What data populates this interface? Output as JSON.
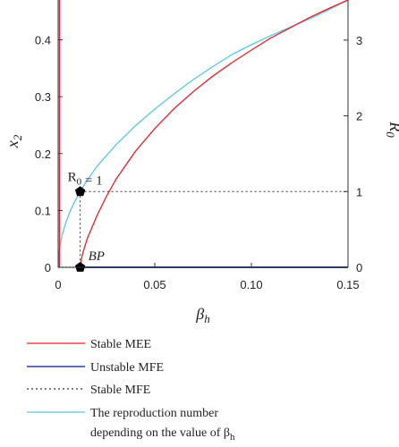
{
  "chart_data": {
    "type": "line",
    "xlabel": "β_h",
    "ylabel_left": "x_2",
    "ylabel_right": "R_0",
    "xlim": [
      0,
      0.15
    ],
    "ylim_left": [
      0,
      0.47
    ],
    "ylim_right": [
      0,
      3.53
    ],
    "x_ticks": [
      "0",
      "0.05",
      "0.10",
      "0.15"
    ],
    "y_left_ticks": [
      "0",
      "0.1",
      "0.2",
      "0.3",
      "0.4"
    ],
    "y_right_ticks": [
      "0",
      "1",
      "2",
      "3"
    ],
    "grid": false,
    "legend_position": "below",
    "colors": {
      "stable_mee": "#e8202a",
      "unstable_mfe": "#2e3f9e",
      "stable_mfe": "#333333",
      "r0": "#5bc6e0"
    },
    "series": [
      {
        "name": "Stable MEE",
        "axis": "left",
        "x": [
          0.0114,
          0.0125,
          0.015,
          0.02,
          0.025,
          0.03,
          0.04,
          0.05,
          0.06,
          0.07,
          0.08,
          0.09,
          0.1,
          0.11,
          0.12,
          0.13,
          0.14,
          0.15
        ],
        "y": [
          0.0,
          0.022,
          0.05,
          0.09,
          0.125,
          0.155,
          0.204,
          0.244,
          0.279,
          0.309,
          0.336,
          0.36,
          0.382,
          0.403,
          0.421,
          0.439,
          0.455,
          0.47
        ]
      },
      {
        "name": "Unstable MFE",
        "axis": "left",
        "x": [
          0.0114,
          0.15
        ],
        "y": [
          0,
          0
        ]
      },
      {
        "name": "Stable MFE",
        "axis": "left",
        "x": [
          0,
          0.0114
        ],
        "y": [
          0,
          0
        ]
      },
      {
        "name": "The reproduction number depending on the value of β_h",
        "axis": "right",
        "x": [
          0,
          0.0005,
          0.001,
          0.002,
          0.004,
          0.006,
          0.008,
          0.0114,
          0.015,
          0.02,
          0.03,
          0.04,
          0.05,
          0.06,
          0.07,
          0.08,
          0.09,
          0.1,
          0.11,
          0.12,
          0.13,
          0.14,
          0.15
        ],
        "y": [
          0,
          0.21,
          0.3,
          0.42,
          0.59,
          0.73,
          0.84,
          1.0,
          1.15,
          1.33,
          1.62,
          1.87,
          2.09,
          2.29,
          2.48,
          2.65,
          2.81,
          2.94,
          3.06,
          3.17,
          3.28,
          3.4,
          3.53
        ]
      }
    ],
    "left_spike_x": 0.0,
    "annotations": [
      {
        "text": "R_0 = 1",
        "x": 0.0114,
        "y_right": 1.0
      },
      {
        "text": "BP",
        "x": 0.0114,
        "y": 0.0
      }
    ],
    "legend": [
      {
        "key": "stable_mee",
        "label": "Stable MEE",
        "style": "solid"
      },
      {
        "key": "unstable_mfe",
        "label": "Unstable MFE",
        "style": "solid"
      },
      {
        "key": "stable_mfe",
        "label": "Stable MFE",
        "style": "dotted"
      },
      {
        "key": "r0",
        "label_line1": "The reproduction number",
        "label_line2": "depending on the value of β_h",
        "style": "solid"
      }
    ]
  }
}
